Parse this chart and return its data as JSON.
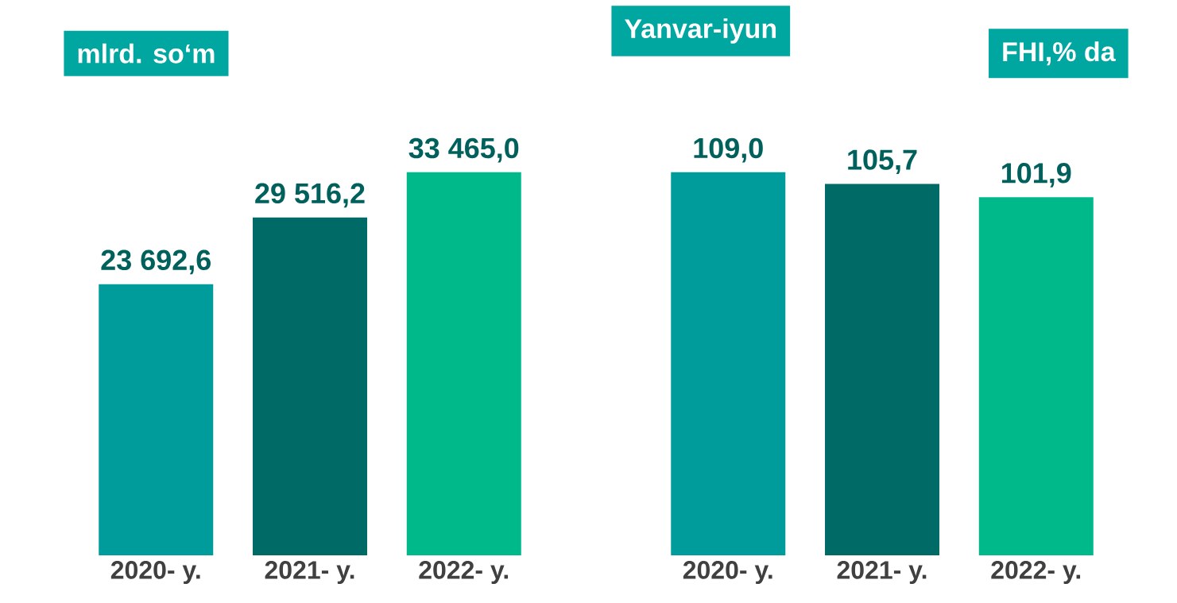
{
  "chart_data": [
    {
      "type": "bar",
      "ylabel": "mlrd. so‘m",
      "categories": [
        "2020- y.",
        "2021- y.",
        "2022- y."
      ],
      "values": [
        23692.6,
        29516.2,
        33465.0
      ],
      "value_labels": [
        "23 692,6",
        "29 516,2",
        "33 465,0"
      ],
      "colors": [
        "#009b9b",
        "#006a66",
        "#00b98a"
      ],
      "tick_labels": "x"
    },
    {
      "type": "bar",
      "title": "Yanvar-iyun",
      "ylabel": "FHI,% da",
      "categories": [
        "2020- y.",
        "2021- y.",
        "2022- y."
      ],
      "values": [
        109.0,
        105.7,
        101.9
      ],
      "value_labels": [
        "109,0",
        "105,7",
        "101,9"
      ],
      "colors": [
        "#009b9b",
        "#006a66",
        "#00b98a"
      ],
      "tick_labels": "x"
    }
  ]
}
